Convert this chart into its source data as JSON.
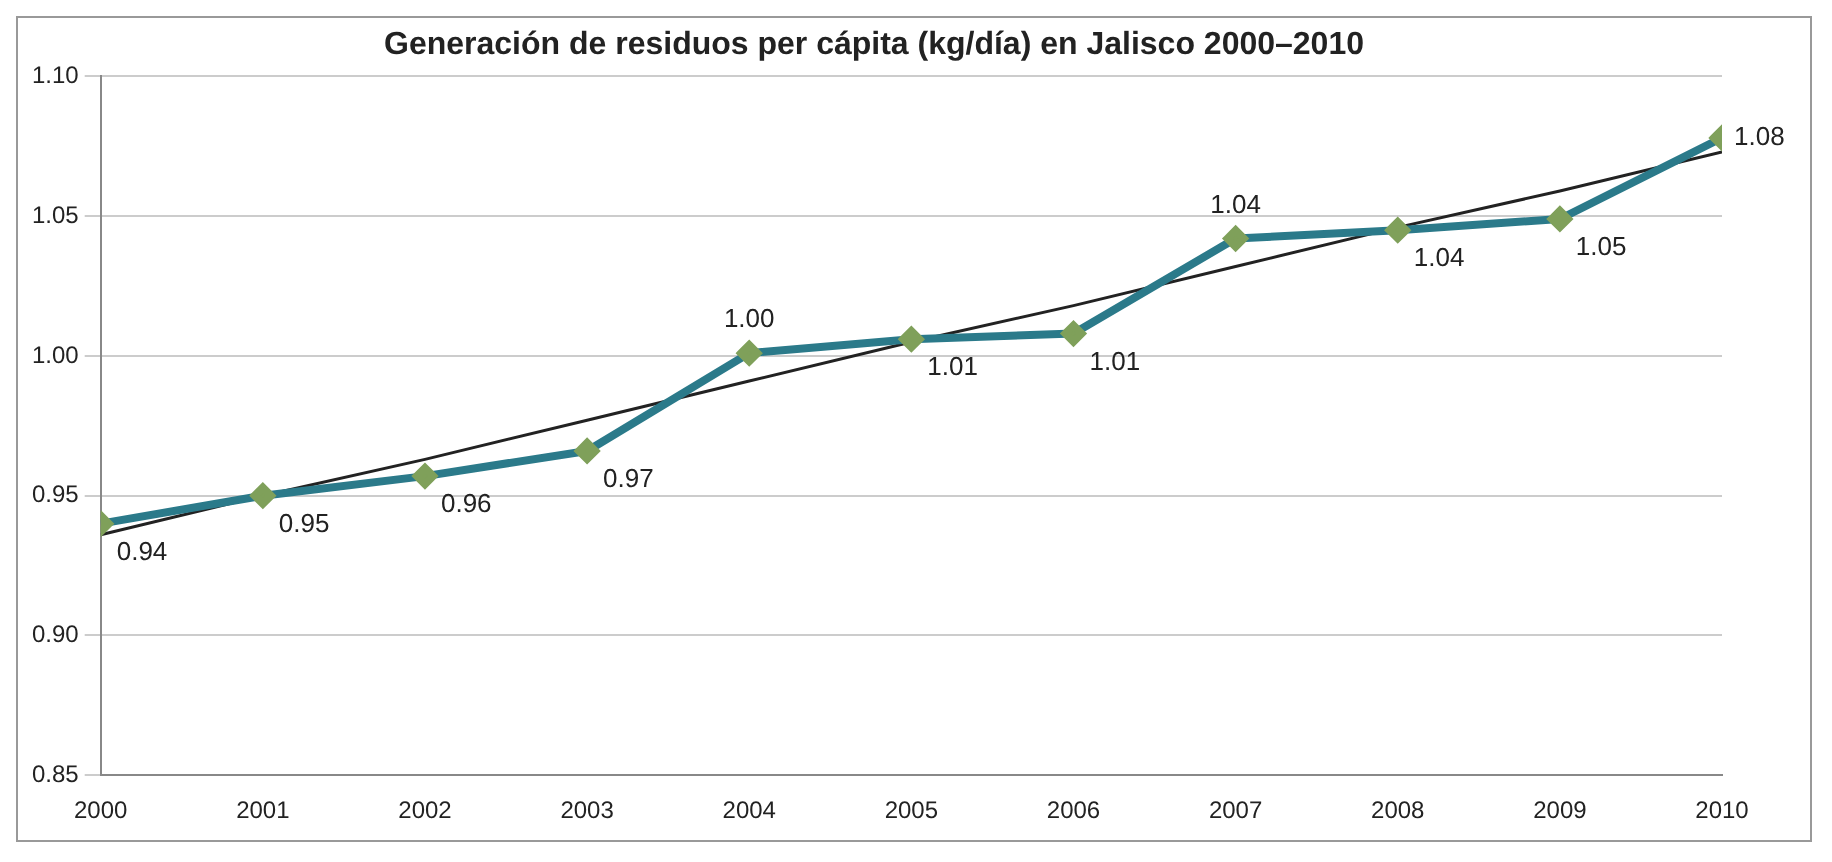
{
  "chart_data": {
    "type": "line",
    "title": "Generación de residuos per cápita (kg/día) en Jalisco 2000–2010",
    "categories": [
      "2000",
      "2001",
      "2002",
      "2003",
      "2004",
      "2005",
      "2006",
      "2007",
      "2008",
      "2009",
      "2010"
    ],
    "series": [
      {
        "color": "#2b7a8a",
        "values": [
          0.94,
          0.95,
          0.957,
          0.966,
          1.001,
          1.006,
          1.008,
          1.042,
          1.045,
          1.049,
          1.078
        ],
        "value_labels": [
          "0.94",
          "0.95",
          "0.96",
          "0.97",
          "1.00",
          "1.01",
          "1.01",
          "1.04",
          "1.04",
          "1.05",
          "1.08"
        ],
        "marker": "diamond"
      },
      {
        "color": "#222222",
        "values": [
          0.936,
          0.95,
          0.963,
          0.977,
          0.991,
          1.005,
          1.018,
          1.032,
          1.046,
          1.059,
          1.073
        ],
        "marker": "none",
        "line_style": "solid"
      }
    ],
    "ylim": [
      0.85,
      1.1
    ],
    "yticks": [
      {
        "value": 0.85,
        "label": "0.85"
      },
      {
        "value": 0.9,
        "label": "0.90"
      },
      {
        "value": 0.95,
        "label": "0.95"
      },
      {
        "value": 1.0,
        "label": "1.00"
      },
      {
        "value": 1.05,
        "label": "1.05"
      },
      {
        "value": 1.1,
        "label": "1.10"
      }
    ],
    "grid": "y",
    "legend": false
  }
}
